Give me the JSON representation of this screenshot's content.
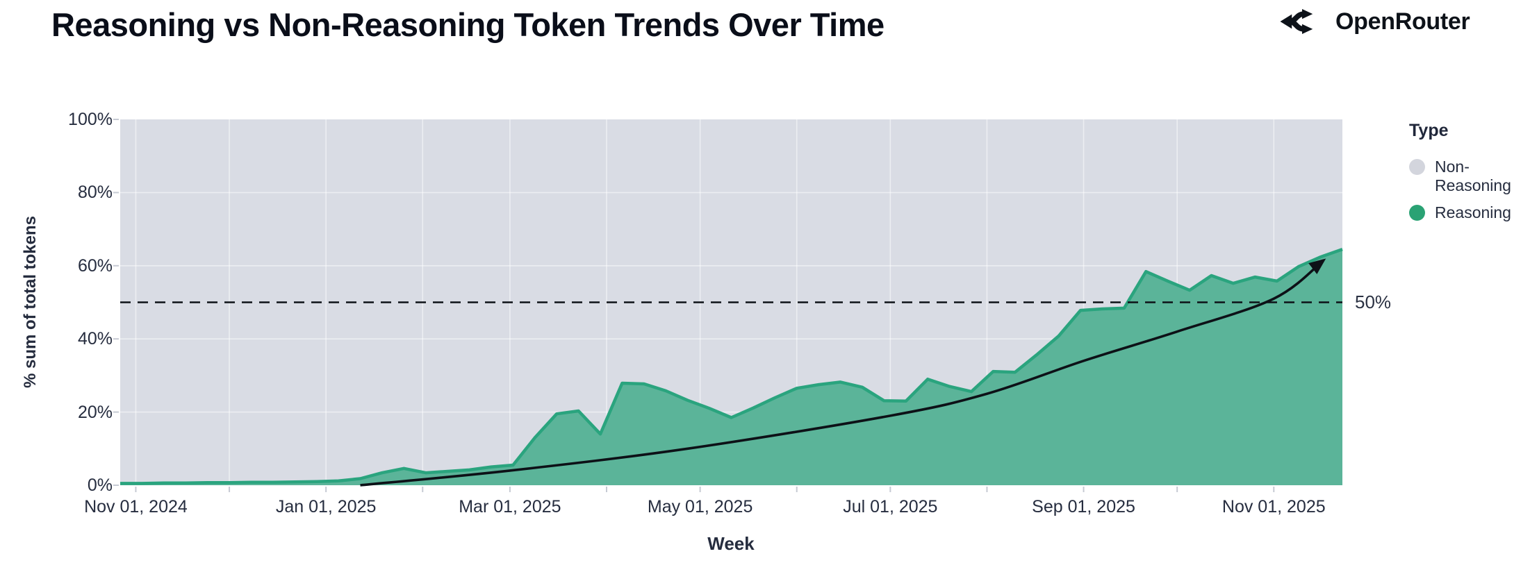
{
  "header": {
    "title": "Reasoning vs Non-Reasoning Token Trends Over Time",
    "brand": "OpenRouter"
  },
  "legend": {
    "title": "Type",
    "items": [
      {
        "label": "Non-Reasoning",
        "color": "#d3d5dd"
      },
      {
        "label": "Reasoning",
        "color": "#2aa274"
      }
    ]
  },
  "chart_data": {
    "type": "area",
    "stacking": "percent",
    "title": "Reasoning vs Non-Reasoning Token Trends Over Time",
    "xlabel": "Week",
    "ylabel": "% sum of total tokens",
    "ylim": [
      0,
      100
    ],
    "grid": true,
    "legend_position": "right",
    "y_ticks_pct": [
      0,
      20,
      40,
      60,
      80,
      100
    ],
    "y_tick_labels": [
      "0%",
      "20%",
      "40%",
      "60%",
      "80%",
      "100%"
    ],
    "x_tick_labels": [
      "Nov 01, 2024",
      "Jan 01, 2025",
      "Mar 01, 2025",
      "May 01, 2025",
      "Jul 01, 2025",
      "Sep 01, 2025",
      "Nov 01, 2025"
    ],
    "x_minor_ticks": "monthly",
    "reference_line": {
      "value": 50,
      "label": "50%",
      "style": "dashed"
    },
    "trend_annotation": {
      "shape": "exponential arrow",
      "points": [
        {
          "date": "2025-01-12",
          "value": 0
        },
        {
          "date": "2025-03-01",
          "value": 4
        },
        {
          "date": "2025-04-27",
          "value": 10
        },
        {
          "date": "2025-07-01",
          "value": 19
        },
        {
          "date": "2025-08-01",
          "value": 25
        },
        {
          "date": "2025-09-01",
          "value": 34
        },
        {
          "date": "2025-10-01",
          "value": 42
        },
        {
          "date": "2025-11-01",
          "value": 51
        },
        {
          "date": "2025-11-17",
          "value": 61.5
        }
      ]
    },
    "weeks": [
      "2024-10-27",
      "2024-11-03",
      "2024-11-10",
      "2024-11-17",
      "2024-11-24",
      "2024-12-01",
      "2024-12-08",
      "2024-12-15",
      "2024-12-22",
      "2024-12-29",
      "2025-01-05",
      "2025-01-12",
      "2025-01-19",
      "2025-01-26",
      "2025-02-02",
      "2025-02-09",
      "2025-02-16",
      "2025-02-23",
      "2025-03-02",
      "2025-03-09",
      "2025-03-16",
      "2025-03-23",
      "2025-03-30",
      "2025-04-06",
      "2025-04-13",
      "2025-04-20",
      "2025-04-27",
      "2025-05-04",
      "2025-05-11",
      "2025-05-18",
      "2025-05-25",
      "2025-06-01",
      "2025-06-08",
      "2025-06-15",
      "2025-06-22",
      "2025-06-29",
      "2025-07-06",
      "2025-07-13",
      "2025-07-20",
      "2025-07-27",
      "2025-08-03",
      "2025-08-10",
      "2025-08-17",
      "2025-08-24",
      "2025-08-31",
      "2025-09-07",
      "2025-09-14",
      "2025-09-21",
      "2025-09-28",
      "2025-10-05",
      "2025-10-12",
      "2025-10-19",
      "2025-10-26",
      "2025-11-02",
      "2025-11-09",
      "2025-11-16",
      "2025-11-23"
    ],
    "series": [
      {
        "name": "Reasoning",
        "color_fill": "#5bb499",
        "color_line": "#2aa47e",
        "values": [
          0.5,
          0.5,
          0.6,
          0.6,
          0.7,
          0.7,
          0.8,
          0.8,
          0.9,
          1.0,
          1.2,
          1.8,
          3.4,
          4.6,
          3.4,
          3.8,
          4.2,
          5.0,
          5.5,
          13.0,
          19.5,
          20.3,
          14.0,
          27.9,
          27.7,
          25.8,
          23.2,
          21.0,
          18.5,
          21.1,
          23.9,
          26.5,
          27.5,
          28.2,
          26.8,
          23.1,
          23.0,
          29.0,
          27.0,
          25.6,
          31.1,
          30.9,
          35.7,
          40.8,
          47.8,
          48.2,
          48.4,
          58.4,
          55.8,
          53.3,
          57.3,
          55.2,
          56.9,
          55.8,
          59.8,
          62.4,
          64.5
        ]
      },
      {
        "name": "Non-Reasoning",
        "color_fill": "#d9dce4",
        "values_note": "remainder to 100% of each week (100 - Reasoning)"
      }
    ],
    "colors": {
      "plot_background_non_reasoning": "#d9dce4",
      "gridline": "rgba(255,255,255,0.5)",
      "reference_and_trend": "#0d1117",
      "tick_text": "#262d3f"
    }
  }
}
